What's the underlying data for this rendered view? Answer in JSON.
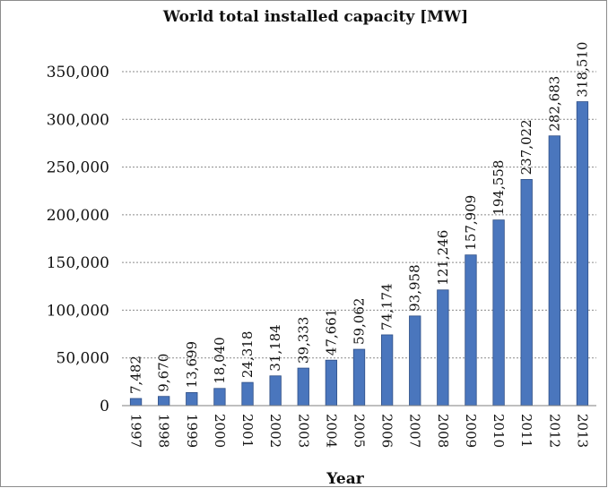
{
  "chart_data": {
    "type": "bar",
    "title": "World total installed capacity [MW]",
    "xlabel": "Year",
    "ylabel": "",
    "ylim": [
      0,
      350000
    ],
    "yticks": [
      0,
      50000,
      100000,
      150000,
      200000,
      250000,
      300000,
      350000
    ],
    "ytick_labels": [
      "0",
      "50,000",
      "100,000",
      "150,000",
      "200,000",
      "250,000",
      "300,000",
      "350,000"
    ],
    "grid": true,
    "categories": [
      "1997",
      "1998",
      "1999",
      "2000",
      "2001",
      "2002",
      "2003",
      "2004",
      "2005",
      "2006",
      "2007",
      "2008",
      "2009",
      "2010",
      "2011",
      "2012",
      "2013"
    ],
    "values": [
      7482,
      9670,
      13699,
      18040,
      24318,
      31184,
      39333,
      47661,
      59062,
      74174,
      93958,
      121246,
      157909,
      194558,
      237022,
      282683,
      318510
    ],
    "value_labels": [
      "7,482",
      "9,670",
      "13,699",
      "18,040",
      "24,318",
      "31,184",
      "39,333",
      "47,661",
      "59,062",
      "74,174",
      "93,958",
      "121,246",
      "157,909",
      "194,558",
      "237,022",
      "282,683",
      "318,510"
    ],
    "colors": {
      "bar": "#4a76bd",
      "bar_edge": "#2f4f86",
      "frame": "#8c8c8c"
    }
  }
}
